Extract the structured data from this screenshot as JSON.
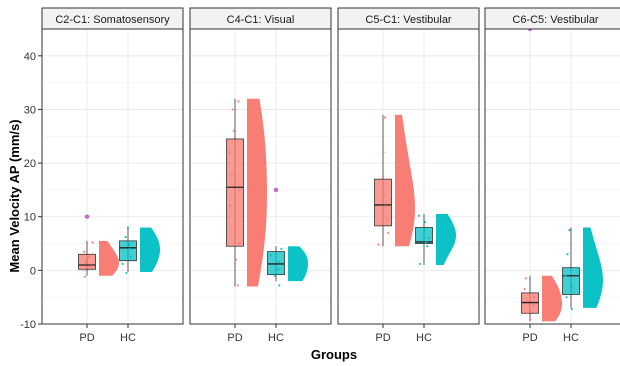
{
  "chart_data": {
    "type": "raincloud",
    "xlabel": "Groups",
    "ylabel": "Mean Velocity AP (mm/s)",
    "ylim": [
      -10,
      45
    ],
    "yticks": [
      "-10",
      "0",
      "10",
      "20",
      "30",
      "40"
    ],
    "categories": [
      "PD",
      "HC"
    ],
    "grid": true,
    "legend": "none",
    "colors": {
      "PD": "#F8766D",
      "HC": "#00BFC4",
      "outlier": "#CC66CC"
    },
    "panels": [
      {
        "title": "C2-C1: Somatosensory",
        "groups": [
          {
            "name": "PD",
            "min": -1,
            "q1": 0.2,
            "median": 1,
            "q3": 3,
            "max": 5.5,
            "outliers": [
              10
            ],
            "points": [
              -1.2,
              0.1,
              0.8,
              1.5,
              2.6,
              3.5,
              5.2
            ]
          },
          {
            "name": "HC",
            "min": -0.3,
            "q1": 1.8,
            "median": 4.2,
            "q3": 5.5,
            "max": 8,
            "outliers": [],
            "points": [
              -0.5,
              1.2,
              2.5,
              4.0,
              4.8,
              6.2,
              8.0
            ]
          }
        ]
      },
      {
        "title": "C4-C1: Visual",
        "groups": [
          {
            "name": "PD",
            "min": -3,
            "q1": 4.5,
            "median": 15.5,
            "q3": 24.5,
            "max": 32,
            "outliers": [],
            "points": [
              -2.8,
              2.0,
              5.0,
              8.0,
              12.0,
              15.0,
              18.0,
              22.0,
              26.0,
              30.0,
              31.5
            ]
          },
          {
            "name": "HC",
            "min": -2,
            "q1": -0.8,
            "median": 1.2,
            "q3": 3.5,
            "max": 4.5,
            "outliers": [
              15
            ],
            "points": [
              -2.8,
              -1.0,
              0.2,
              1.5,
              2.8,
              4.0
            ]
          }
        ]
      },
      {
        "title": "C5-C1: Vestibular",
        "groups": [
          {
            "name": "PD",
            "min": 4.5,
            "q1": 8.3,
            "median": 12.2,
            "q3": 17,
            "max": 29,
            "outliers": [],
            "points": [
              4.8,
              7.0,
              9.5,
              12.0,
              14.0,
              17.5,
              22.0,
              28.5
            ]
          },
          {
            "name": "HC",
            "min": 1,
            "q1": 5,
            "median": 5.3,
            "q3": 8,
            "max": 10.5,
            "outliers": [],
            "points": [
              1.2,
              4.5,
              5.2,
              6.0,
              7.5,
              9.0,
              10.2
            ]
          }
        ]
      },
      {
        "title": "C6-C5: Vestibular",
        "groups": [
          {
            "name": "PD",
            "min": -9.5,
            "q1": -8,
            "median": -6,
            "q3": -4.2,
            "max": -1,
            "outliers": [
              45
            ],
            "points": [
              -9.2,
              -8.0,
              -6.5,
              -5.0,
              -3.5,
              -1.5
            ]
          },
          {
            "name": "HC",
            "min": -7,
            "q1": -4.5,
            "median": -1,
            "q3": 0.5,
            "max": 8,
            "outliers": [],
            "points": [
              -7.2,
              -5.0,
              -3.0,
              -1.0,
              0.5,
              3.0,
              7.5
            ]
          }
        ]
      }
    ]
  }
}
